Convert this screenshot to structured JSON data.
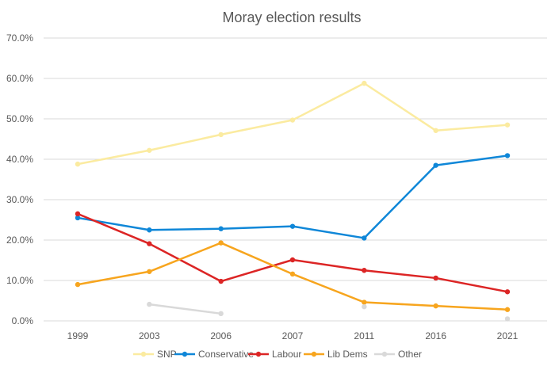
{
  "chart_data": {
    "type": "line",
    "title": "Moray election results",
    "xlabel": "",
    "ylabel": "",
    "categories": [
      "1999",
      "2003",
      "2006",
      "2007",
      "2011",
      "2016",
      "2021"
    ],
    "ylim": [
      0,
      70
    ],
    "yticks": [
      "0.0%",
      "10.0%",
      "20.0%",
      "30.0%",
      "40.0%",
      "50.0%",
      "60.0%",
      "70.0%"
    ],
    "grid": true,
    "legend_position": "bottom",
    "series": [
      {
        "name": "SNP",
        "color": "#fbeba0",
        "values": [
          38.8,
          42.2,
          46.1,
          49.7,
          58.8,
          47.1,
          48.5
        ]
      },
      {
        "name": "Conservative",
        "color": "#0f87d8",
        "values": [
          25.5,
          22.5,
          22.8,
          23.4,
          20.5,
          38.5,
          40.9
        ]
      },
      {
        "name": "Labour",
        "color": "#dc2525",
        "values": [
          26.5,
          19.1,
          9.8,
          15.1,
          12.5,
          10.6,
          7.2
        ]
      },
      {
        "name": "Lib Dems",
        "color": "#f7a51e",
        "values": [
          9.0,
          12.2,
          19.3,
          11.6,
          4.6,
          3.7,
          2.8
        ]
      },
      {
        "name": "Other",
        "color": "#d9d9d9",
        "values": [
          null,
          4.1,
          1.8,
          null,
          3.5,
          null,
          0.5
        ]
      }
    ]
  }
}
